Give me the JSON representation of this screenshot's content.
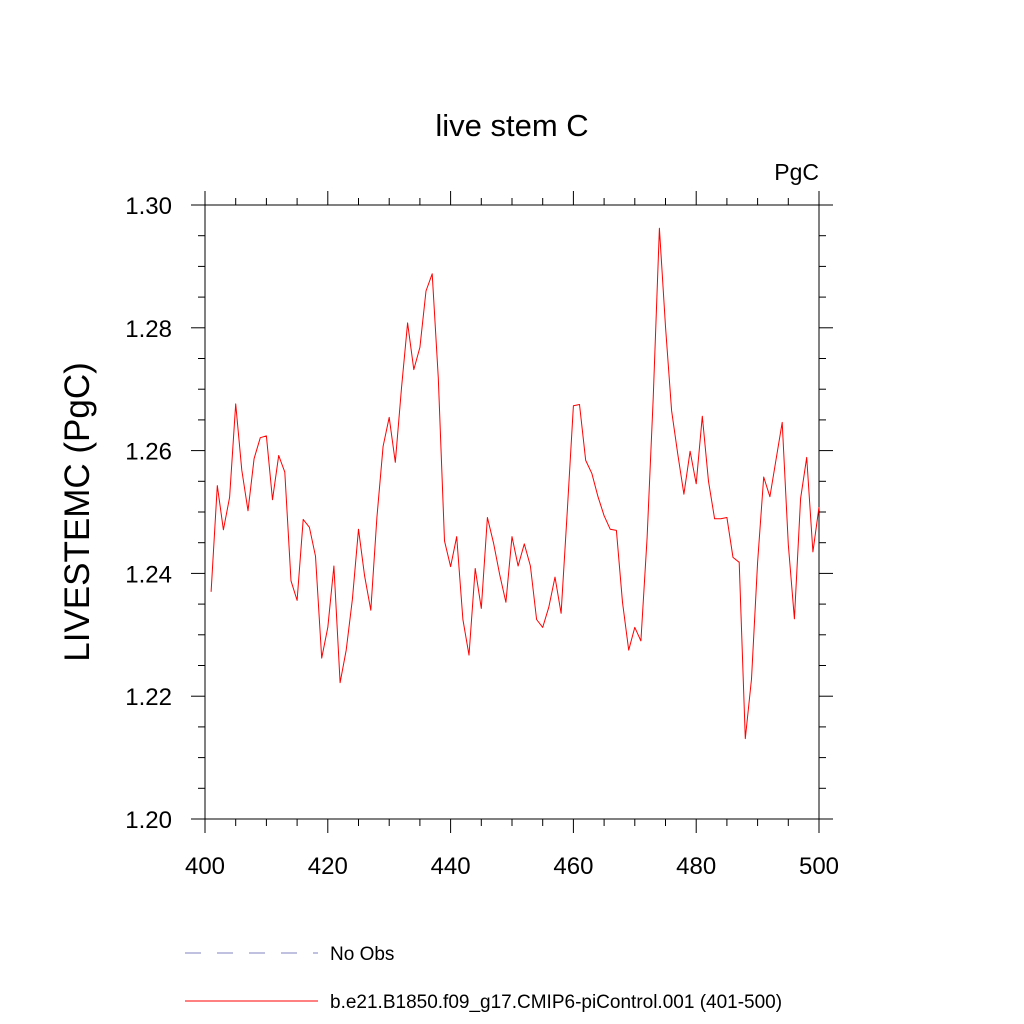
{
  "chart_data": {
    "type": "line",
    "title": "live stem C",
    "units_label": "PgC",
    "ylabel": "LIVESTEMC  (PgC)",
    "xlabel": "",
    "xlim": [
      400,
      500
    ],
    "ylim": [
      1.2,
      1.3
    ],
    "x_ticks": [
      "400",
      "420",
      "440",
      "460",
      "480",
      "500"
    ],
    "y_ticks": [
      "1.20",
      "1.22",
      "1.24",
      "1.26",
      "1.28",
      "1.30"
    ],
    "grid": false,
    "legend_position": "bottom",
    "series": [
      {
        "name": "No Obs",
        "color": "#8080c0",
        "style": "dashed",
        "values": []
      },
      {
        "name": "b.e21.B1850.f09_g17.CMIP6-piControl.001 (401-500)",
        "color": "#ff0000",
        "style": "solid",
        "x": [
          401,
          402,
          403,
          404,
          405,
          406,
          407,
          408,
          409,
          410,
          411,
          412,
          413,
          414,
          415,
          416,
          417,
          418,
          419,
          420,
          421,
          422,
          423,
          424,
          425,
          426,
          427,
          428,
          429,
          430,
          431,
          432,
          433,
          434,
          435,
          436,
          437,
          438,
          439,
          440,
          441,
          442,
          443,
          444,
          445,
          446,
          447,
          448,
          449,
          450,
          451,
          452,
          453,
          454,
          455,
          456,
          457,
          458,
          459,
          460,
          461,
          462,
          463,
          464,
          465,
          466,
          467,
          468,
          469,
          470,
          471,
          472,
          473,
          474,
          475,
          476,
          477,
          478,
          479,
          480,
          481,
          482,
          483,
          484,
          485,
          486,
          487,
          488,
          489,
          490,
          491,
          492,
          493,
          494,
          495,
          496,
          497,
          498,
          499,
          500
        ],
        "values": [
          1.237,
          1.2543,
          1.2471,
          1.2524,
          1.2676,
          1.2568,
          1.2502,
          1.2587,
          1.2621,
          1.2624,
          1.252,
          1.2592,
          1.2565,
          1.2388,
          1.2356,
          1.2488,
          1.2475,
          1.2428,
          1.2262,
          1.2312,
          1.2412,
          1.2222,
          1.2275,
          1.2358,
          1.2472,
          1.2396,
          1.234,
          1.2491,
          1.2607,
          1.2654,
          1.2581,
          1.2702,
          1.2808,
          1.2732,
          1.2768,
          1.286,
          1.2888,
          1.2718,
          1.2453,
          1.2411,
          1.246,
          1.2325,
          1.2267,
          1.2408,
          1.2343,
          1.2491,
          1.2449,
          1.2398,
          1.2353,
          1.246,
          1.2412,
          1.2448,
          1.2412,
          1.2325,
          1.2312,
          1.2345,
          1.2394,
          1.2335,
          1.2502,
          1.2673,
          1.2675,
          1.2584,
          1.2563,
          1.2525,
          1.2494,
          1.2472,
          1.247,
          1.2353,
          1.2275,
          1.2312,
          1.229,
          1.2458,
          1.2685,
          1.2962,
          1.2802,
          1.2665,
          1.2594,
          1.2529,
          1.2599,
          1.2546,
          1.2656,
          1.255,
          1.2489,
          1.2489,
          1.2491,
          1.2426,
          1.2418,
          1.2131,
          1.2228,
          1.2418,
          1.2557,
          1.2525,
          1.2585,
          1.2646,
          1.2447,
          1.2326,
          1.2522,
          1.2589,
          1.2435,
          1.2508
        ]
      }
    ]
  }
}
